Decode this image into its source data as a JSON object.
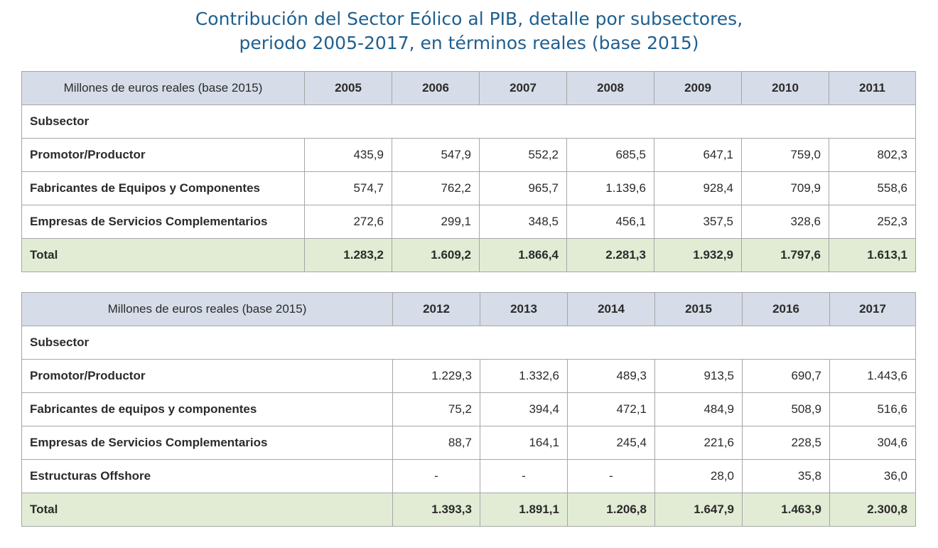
{
  "title_line1": "Contribución del Sector Eólico al PIB, detalle por subsectores,",
  "title_line2": "periodo 2005-2017, en términos reales (base 2015)",
  "table1": {
    "unit_header": "Millones de euros reales (base 2015)",
    "years": [
      "2005",
      "2006",
      "2007",
      "2008",
      "2009",
      "2010",
      "2011"
    ],
    "subsector_label": "Subsector",
    "rows": [
      {
        "label": "Promotor/Productor",
        "values": [
          "435,9",
          "547,9",
          "552,2",
          "685,5",
          "647,1",
          "759,0",
          "802,3"
        ]
      },
      {
        "label": "Fabricantes de Equipos y Componentes",
        "values": [
          "574,7",
          "762,2",
          "965,7",
          "1.139,6",
          "928,4",
          "709,9",
          "558,6"
        ]
      },
      {
        "label": "Empresas de Servicios Complementarios",
        "values": [
          "272,6",
          "299,1",
          "348,5",
          "456,1",
          "357,5",
          "328,6",
          "252,3"
        ]
      }
    ],
    "total": {
      "label": "Total",
      "values": [
        "1.283,2",
        "1.609,2",
        "1.866,4",
        "2.281,3",
        "1.932,9",
        "1.797,6",
        "1.613,1"
      ]
    }
  },
  "table2": {
    "unit_header": "Millones de euros reales (base 2015)",
    "years": [
      "2012",
      "2013",
      "2014",
      "2015",
      "2016",
      "2017"
    ],
    "subsector_label": "Subsector",
    "rows": [
      {
        "label": "Promotor/Productor",
        "values": [
          "1.229,3",
          "1.332,6",
          "489,3",
          "913,5",
          "690,7",
          "1.443,6"
        ]
      },
      {
        "label": "Fabricantes de equipos y componentes",
        "values": [
          "75,2",
          "394,4",
          "472,1",
          "484,9",
          "508,9",
          "516,6"
        ]
      },
      {
        "label": "Empresas de Servicios Complementarios",
        "values": [
          "88,7",
          "164,1",
          "245,4",
          "221,6",
          "228,5",
          "304,6"
        ]
      },
      {
        "label": "Estructuras Offshore",
        "values": [
          "-",
          "-",
          "-",
          "28,0",
          "35,8",
          "36,0"
        ]
      }
    ],
    "total": {
      "label": "Total",
      "values": [
        "1.393,3",
        "1.891,1",
        "1.206,8",
        "1.647,9",
        "1.463,9",
        "2.300,8"
      ]
    }
  }
}
